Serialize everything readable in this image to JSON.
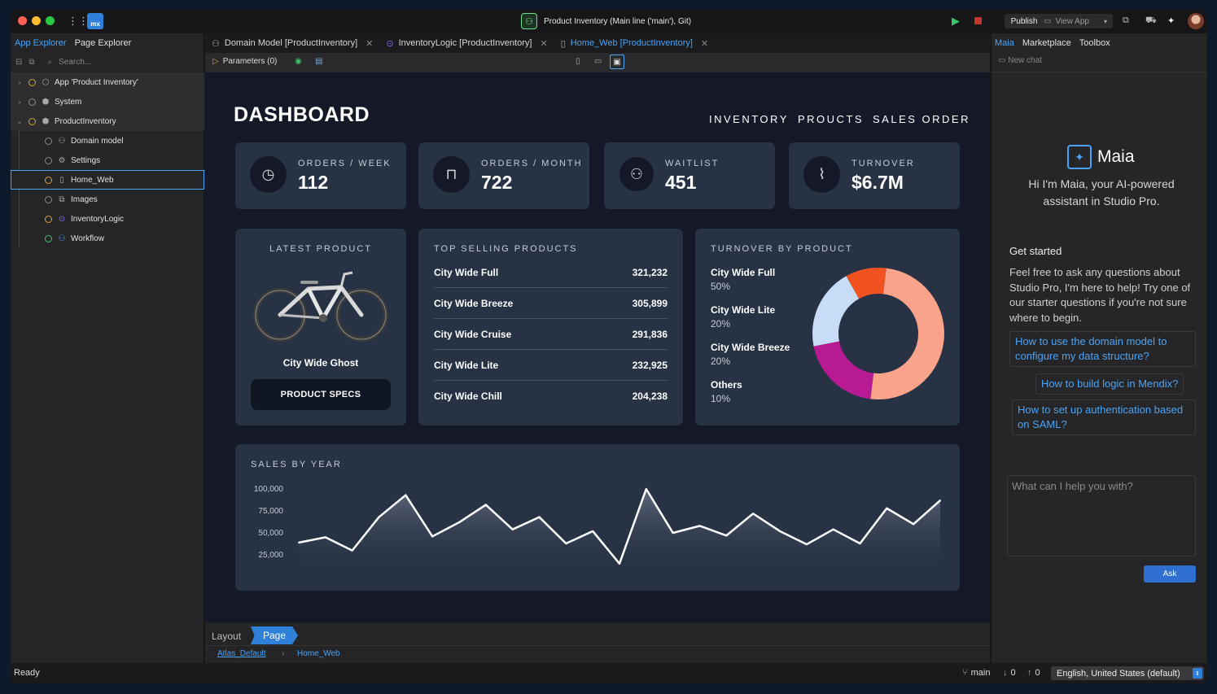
{
  "titlebar": {
    "project_title": "Product Inventory  (Main line ('main'), Git)",
    "publish_label": "Publish",
    "view_app_label": "View App"
  },
  "left_panel": {
    "tabs": [
      "App Explorer",
      "Page Explorer"
    ],
    "search_placeholder": "Search...",
    "tree": [
      {
        "label": "App 'Product Inventory'",
        "icon": "app-icon"
      },
      {
        "label": "System",
        "icon": "module-icon"
      },
      {
        "label": "ProductInventory",
        "icon": "module-icon"
      },
      {
        "label": "Domain model",
        "icon": "domain-model-icon"
      },
      {
        "label": "Settings",
        "icon": "gear-icon"
      },
      {
        "label": "Home_Web",
        "icon": "page-icon"
      },
      {
        "label": "Images",
        "icon": "image-collection-icon"
      },
      {
        "label": "InventoryLogic",
        "icon": "microflow-icon"
      },
      {
        "label": "Workflow",
        "icon": "workflow-icon"
      }
    ]
  },
  "center_tabs": [
    {
      "label": "Domain Model [ProductInventory]"
    },
    {
      "label": "InventoryLogic [ProductInventory]"
    },
    {
      "label": "Home_Web [ProductInventory]"
    }
  ],
  "toolbar": {
    "parameters_label": "Parameters (0)"
  },
  "dashboard": {
    "title": "DASHBOARD",
    "nav": [
      "INVENTORY",
      "PROUCTS",
      "SALES ORDER"
    ],
    "kpis": [
      {
        "label": "ORDERS / WEEK",
        "value": "112",
        "icon": "clock-icon"
      },
      {
        "label": "ORDERS / MONTH",
        "value": "722",
        "icon": "shopping-bag-icon"
      },
      {
        "label": "WAITLIST",
        "value": "451",
        "icon": "users-icon"
      },
      {
        "label": "TURNOVER",
        "value": "$6.7M",
        "icon": "trend-chart-icon"
      }
    ],
    "latest_product": {
      "heading": "LATEST PRODUCT",
      "name": "City Wide Ghost",
      "button": "PRODUCT SPECS"
    },
    "top_selling": {
      "heading": "TOP SELLING PRODUCTS",
      "rows": [
        {
          "name": "City Wide Full",
          "value": "321,232"
        },
        {
          "name": "City Wide Breeze",
          "value": "305,899"
        },
        {
          "name": "City Wide Cruise",
          "value": "291,836"
        },
        {
          "name": "City Wide Lite",
          "value": "232,925"
        },
        {
          "name": "City Wide Chill",
          "value": "204,238"
        }
      ]
    },
    "turnover_heading": "TURNOVER BY PRODUCT",
    "sales_heading": "SALES BY YEAR"
  },
  "chart_data": [
    {
      "type": "pie",
      "title": "TURNOVER BY PRODUCT",
      "categories": [
        "City Wide Full",
        "City Wide Lite",
        "City Wide Breeze",
        "Others"
      ],
      "values": [
        50,
        20,
        20,
        10
      ],
      "labels": [
        "50%",
        "20%",
        "20%",
        "10%"
      ],
      "colors": [
        "#f9a48a",
        "#b81a94",
        "#c8dcf8",
        "#f2521f"
      ],
      "donut": true
    },
    {
      "type": "area",
      "title": "SALES BY YEAR",
      "ylim": [
        25000,
        100000
      ],
      "yticks": [
        "100,000",
        "75,000",
        "50,000",
        "25,000"
      ],
      "ytick_values": [
        100000,
        75000,
        50000,
        25000
      ],
      "values": [
        39000,
        45000,
        30000,
        68000,
        93000,
        46000,
        62000,
        82000,
        54000,
        68000,
        38000,
        52000,
        15000,
        100000,
        50000,
        58000,
        47000,
        72000,
        52000,
        37000,
        54000,
        38000,
        78000,
        60000,
        87000
      ],
      "grid": false,
      "color": "#ffffff"
    }
  ],
  "bottom": {
    "layout_tab": "Layout",
    "page_tab": "Page",
    "crumbs": [
      "Atlas_Default",
      "Home_Web"
    ]
  },
  "right_panel": {
    "tabs": [
      "Maia",
      "Marketplace",
      "Toolbox"
    ],
    "new_chat": "New chat",
    "name": "Maia",
    "intro": "Hi I'm Maia, your AI-powered assistant in Studio Pro.",
    "get_started": "Get started",
    "description": "Feel free to ask any questions about Studio Pro, I'm here to help! Try one of our starter questions if you're not sure where to begin.",
    "suggestions": [
      "How to use the domain model to configure my data structure?",
      "How to build logic in Mendix?",
      "How to set up authentication based on SAML?"
    ],
    "input_placeholder": "What can I help you with?",
    "ask_label": "Ask"
  },
  "statusbar": {
    "status": "Ready",
    "branch": "main",
    "incoming": "0",
    "outgoing": "0",
    "language": "English, United States (default)"
  }
}
